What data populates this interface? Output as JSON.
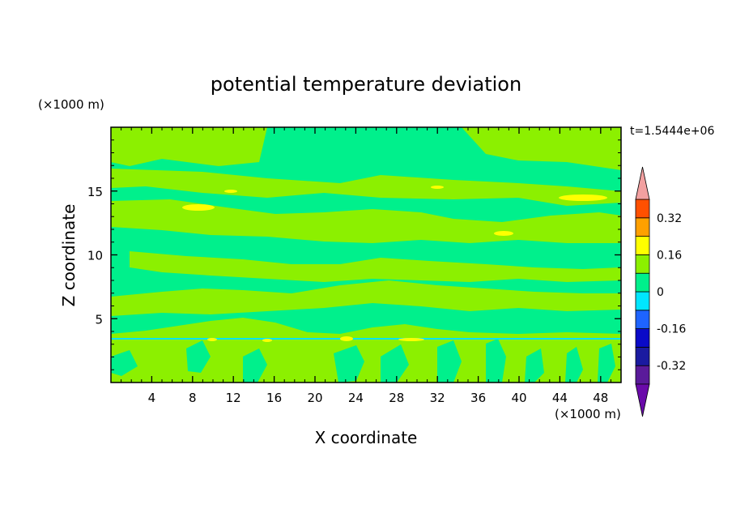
{
  "chart_data": {
    "type": "heatmap",
    "title": "potential temperature deviation",
    "time_label": "t=1.5444e+06",
    "xlabel": "X coordinate",
    "ylabel": "Z coordinate",
    "x_unit": "(×1000 m)",
    "y_unit": "(×1000 m)",
    "xlim": [
      0,
      50
    ],
    "ylim": [
      0,
      20
    ],
    "x_ticks": [
      4,
      8,
      12,
      16,
      20,
      24,
      28,
      32,
      36,
      40,
      44,
      48
    ],
    "y_ticks": [
      5,
      10,
      15
    ],
    "grid": false,
    "colorbar": {
      "placement": "right",
      "tick_labels": [
        "0.32",
        "0.16",
        "0",
        "-0.16",
        "-0.32"
      ],
      "tick_values": [
        0.32,
        0.16,
        0,
        -0.16,
        -0.32
      ],
      "levels": [
        -0.4,
        -0.32,
        -0.24,
        -0.16,
        -0.08,
        0,
        0.08,
        0.16,
        0.24,
        0.32,
        0.4
      ],
      "colors": [
        "#5a1a9a",
        "#1a1aa0",
        "#0a0ac8",
        "#1e64ff",
        "#00e6ff",
        "#00f08c",
        "#8cf000",
        "#ffff00",
        "#ffa000",
        "#ff5000",
        "#e61414"
      ],
      "extend_low_color": "#6a0aaa",
      "extend_high_color": "#f2a0a0"
    },
    "field_description_levels": {
      "background": "#00f08c",
      "positive_bands": "#8cf000",
      "hot_spots": "#ffff00",
      "cold_line": "#00e6ff"
    }
  }
}
